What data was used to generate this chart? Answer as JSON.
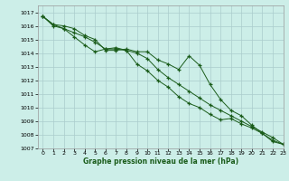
{
  "title": "Graphe pression niveau de la mer (hPa)",
  "bg_color": "#cceee8",
  "grid_color": "#aacccc",
  "line_color": "#1a5c1a",
  "xlim": [
    -0.5,
    23
  ],
  "ylim": [
    1007,
    1017.5
  ],
  "xticks": [
    0,
    1,
    2,
    3,
    4,
    5,
    6,
    7,
    8,
    9,
    10,
    11,
    12,
    13,
    14,
    15,
    16,
    17,
    18,
    19,
    20,
    21,
    22,
    23
  ],
  "yticks": [
    1007,
    1008,
    1009,
    1010,
    1011,
    1012,
    1013,
    1014,
    1015,
    1016,
    1017
  ],
  "series": [
    [
      1016.7,
      1016.1,
      1016.0,
      1015.8,
      1015.3,
      1015.0,
      1014.2,
      1014.2,
      1014.3,
      1014.1,
      1014.1,
      1013.5,
      1013.2,
      1012.8,
      1013.8,
      1013.1,
      1011.7,
      1010.6,
      1009.8,
      1009.4,
      1008.7,
      1008.1,
      1007.5,
      1007.3
    ],
    [
      1016.7,
      1016.1,
      1015.8,
      1015.2,
      1014.6,
      1014.1,
      1014.3,
      1014.4,
      1014.2,
      1013.2,
      1012.7,
      1012.0,
      1011.5,
      1010.8,
      1010.3,
      1010.0,
      1009.5,
      1009.1,
      1009.2,
      1008.8,
      1008.5,
      1008.1,
      1007.6,
      1007.3
    ],
    [
      1016.7,
      1016.0,
      1015.8,
      1015.5,
      1015.2,
      1014.8,
      1014.3,
      1014.3,
      1014.2,
      1014.0,
      1013.6,
      1012.8,
      1012.2,
      1011.7,
      1011.2,
      1010.7,
      1010.2,
      1009.8,
      1009.4,
      1009.0,
      1008.6,
      1008.2,
      1007.8,
      1007.3
    ]
  ]
}
